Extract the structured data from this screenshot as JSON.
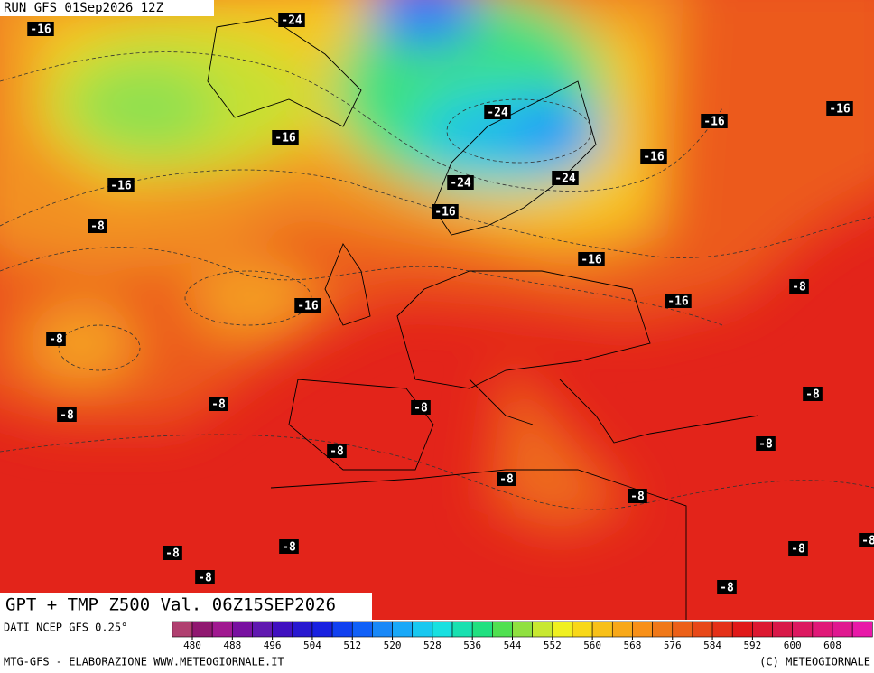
{
  "header": {
    "run": "RUN GFS 01Sep2026 12Z"
  },
  "title": "GPT + TMP Z500 Val. 06Z15SEP2026",
  "footer": {
    "source": "DATI NCEP GFS 0.25°",
    "credit_left": "MTG-GFS - ELABORAZIONE WWW.METEOGIORNALE.IT",
    "credit_right": "(C) METEOGIORNALE"
  },
  "contour_labels": [
    -16,
    -24,
    -16,
    -16,
    -8,
    -24,
    -16,
    -16,
    -24,
    -24,
    -16,
    -16,
    -16,
    -16,
    -16,
    -8,
    -8,
    -8,
    -8,
    -8,
    -8,
    -8,
    -8,
    -8,
    -8,
    -8,
    -8,
    -8,
    -8,
    -8,
    -8
  ],
  "legend": {
    "ticks": [
      480,
      488,
      496,
      504,
      512,
      520,
      528,
      536,
      544,
      552,
      560,
      568,
      576,
      584,
      592,
      600,
      608
    ],
    "colors": [
      "#b04070",
      "#901870",
      "#a01890",
      "#7810a0",
      "#6018b0",
      "#4010c0",
      "#2818d0",
      "#1820e0",
      "#1040f0",
      "#1060f8",
      "#1888f8",
      "#18a8f8",
      "#18c8f0",
      "#18e0e0",
      "#18e0b0",
      "#20e080",
      "#50e050",
      "#90e040",
      "#c8e830",
      "#f0f020",
      "#f8d818",
      "#f8c018",
      "#f8a818",
      "#f89018",
      "#f07818",
      "#ec6018",
      "#e84818",
      "#e43018",
      "#e01818",
      "#dc1830",
      "#d81848",
      "#dc1860",
      "#e01878",
      "#e01890",
      "#e818a8"
    ]
  }
}
